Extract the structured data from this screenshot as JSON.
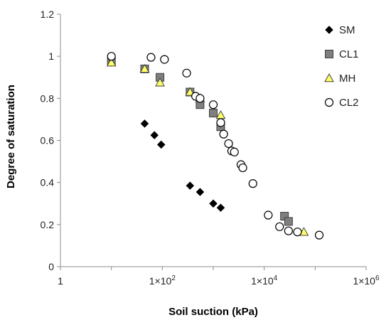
{
  "chart_data": {
    "type": "scatter",
    "x_scale": "log",
    "xlim": [
      1,
      1000000
    ],
    "ylim": [
      0,
      1.2
    ],
    "xlabel": "Soil suction (kPa)",
    "ylabel": "Degree of saturation",
    "x_ticks": [
      {
        "value": 1,
        "base": "1",
        "exp": ""
      },
      {
        "value": 100,
        "base": "1×10",
        "exp": "2"
      },
      {
        "value": 10000,
        "base": "1×10",
        "exp": "4"
      },
      {
        "value": 1000000,
        "base": "1×10",
        "exp": "6"
      }
    ],
    "y_ticks": [
      "0",
      "0.2",
      "0.4",
      "0.6",
      "0.8",
      "1",
      "1.2"
    ],
    "legend_position": "top-right",
    "grid": false,
    "series": [
      {
        "name": "SM",
        "marker": "diamond",
        "color": "#000000",
        "points": [
          [
            10,
            0.97
          ],
          [
            45,
            0.68
          ],
          [
            70,
            0.625
          ],
          [
            95,
            0.58
          ],
          [
            350,
            0.385
          ],
          [
            550,
            0.355
          ],
          [
            1000,
            0.3
          ],
          [
            1400,
            0.28
          ]
        ]
      },
      {
        "name": "CL1",
        "marker": "square",
        "color": "#7f7f7f",
        "points": [
          [
            10,
            0.975
          ],
          [
            45,
            0.94
          ],
          [
            90,
            0.9
          ],
          [
            350,
            0.83
          ],
          [
            550,
            0.77
          ],
          [
            1000,
            0.73
          ],
          [
            1400,
            0.665
          ],
          [
            25000,
            0.24
          ],
          [
            30000,
            0.215
          ]
        ]
      },
      {
        "name": "MH",
        "marker": "triangle",
        "color": "#ffff66",
        "points": [
          [
            10,
            0.97
          ],
          [
            45,
            0.94
          ],
          [
            90,
            0.875
          ],
          [
            350,
            0.83
          ],
          [
            550,
            0.8
          ],
          [
            1400,
            0.72
          ],
          [
            60000,
            0.165
          ]
        ]
      },
      {
        "name": "CL2",
        "marker": "circle",
        "color": "#ffffff",
        "points": [
          [
            10,
            1.0
          ],
          [
            60,
            0.995
          ],
          [
            110,
            0.985
          ],
          [
            300,
            0.92
          ],
          [
            450,
            0.81
          ],
          [
            550,
            0.8
          ],
          [
            1000,
            0.77
          ],
          [
            1400,
            0.685
          ],
          [
            1600,
            0.63
          ],
          [
            2000,
            0.585
          ],
          [
            2300,
            0.55
          ],
          [
            2600,
            0.545
          ],
          [
            3500,
            0.485
          ],
          [
            3800,
            0.47
          ],
          [
            6000,
            0.395
          ],
          [
            12000,
            0.245
          ],
          [
            20000,
            0.19
          ],
          [
            30000,
            0.17
          ],
          [
            45000,
            0.165
          ],
          [
            120000,
            0.15
          ]
        ]
      }
    ]
  }
}
